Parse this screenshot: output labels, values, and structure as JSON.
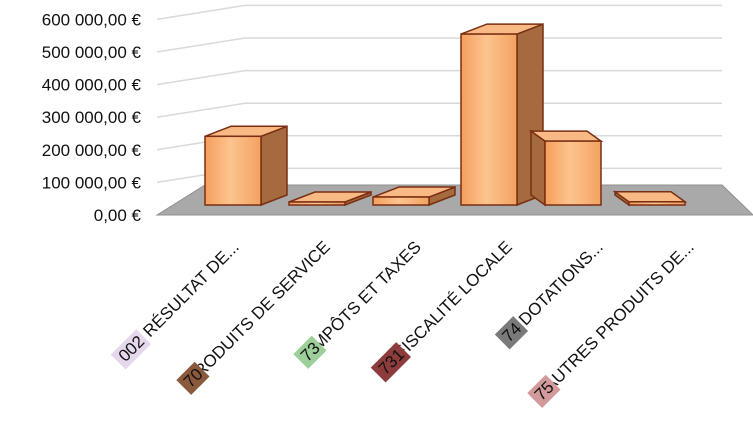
{
  "chart_data": {
    "type": "bar",
    "style": "3d-column",
    "categories": [
      {
        "code": "002",
        "label": "RÉSULTAT DE...",
        "code_color": "#e6d8ec"
      },
      {
        "code": "70",
        "label": "PRODUITS DE SERVICE",
        "code_color": "#8b5a3c"
      },
      {
        "code": "73",
        "label": "IMPÔTS ET TAXES",
        "code_color": "#9ccf9a"
      },
      {
        "code": "731",
        "label": "FISCALITÉ LOCALE",
        "code_color": "#8e3b3b"
      },
      {
        "code": "74",
        "label": "DOTATIONS...",
        "code_color": "#7a7a7a"
      },
      {
        "code": "75",
        "label": "AUTRES PRODUITS DE...",
        "code_color": "#d29a9a"
      }
    ],
    "values": [
      215000,
      1500,
      25000,
      535000,
      200000,
      10000
    ],
    "yticks": [
      "0,00 €",
      "100 000,00 €",
      "200 000,00 €",
      "300 000,00 €",
      "400 000,00 €",
      "500 000,00 €",
      "600 000,00 €"
    ],
    "ylim": [
      0,
      600000
    ],
    "grid": true,
    "colors": {
      "bar_front": "#f6a86a",
      "bar_front_light": "#fbc99a",
      "bar_side": "#a56a3d",
      "bar_top": "#f9b985",
      "bar_edge": "#7a2e12",
      "floor": "#a9a9a9",
      "gridline": "#d9d9d9"
    }
  }
}
